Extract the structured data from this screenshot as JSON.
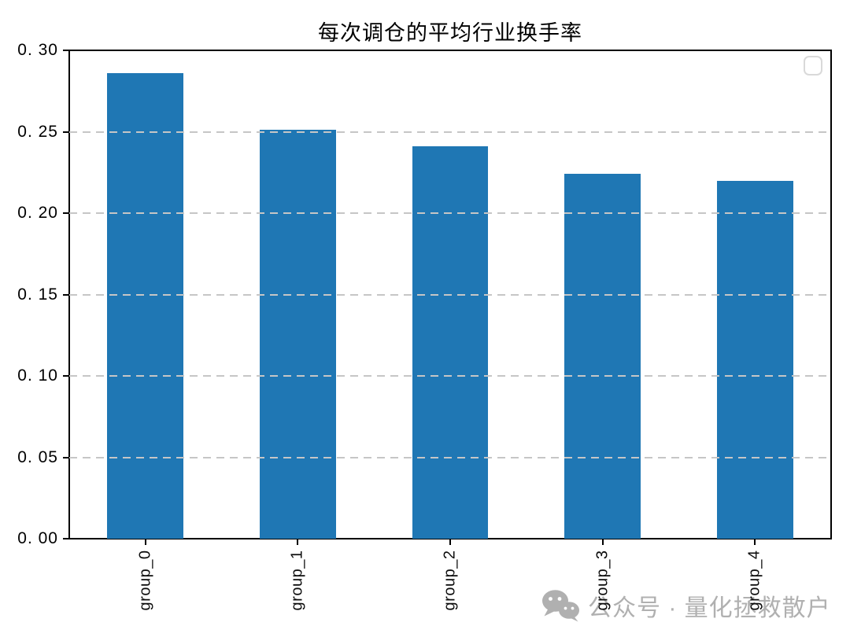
{
  "chart_data": {
    "type": "bar",
    "title": "每次调仓的平均行业换手率",
    "categories": [
      "group_0",
      "group_1",
      "group_2",
      "group_3",
      "group_4"
    ],
    "values": [
      0.286,
      0.251,
      0.241,
      0.224,
      0.22
    ],
    "xlabel": "",
    "ylabel": "",
    "ylim": [
      0,
      0.3
    ],
    "yticks": [
      {
        "value": 0.0,
        "label": "0. 00"
      },
      {
        "value": 0.05,
        "label": "0. 05"
      },
      {
        "value": 0.1,
        "label": "0. 10"
      },
      {
        "value": 0.15,
        "label": "0. 15"
      },
      {
        "value": 0.2,
        "label": "0. 20"
      },
      {
        "value": 0.25,
        "label": "0. 25"
      },
      {
        "value": 0.3,
        "label": "0. 30"
      }
    ],
    "bar_color": "#1f77b4",
    "bar_width_fraction": 0.5,
    "grid": "horizontal-dashed",
    "gridline_color": "#c6c6c6",
    "grid_over_bars": true,
    "legend": "empty-box-top-right",
    "frame": "all-four-spines-black"
  },
  "watermark": {
    "icon": "wechat-icon",
    "text": "公众号 · 量化拯救散户",
    "color": "#b0b0b0"
  }
}
